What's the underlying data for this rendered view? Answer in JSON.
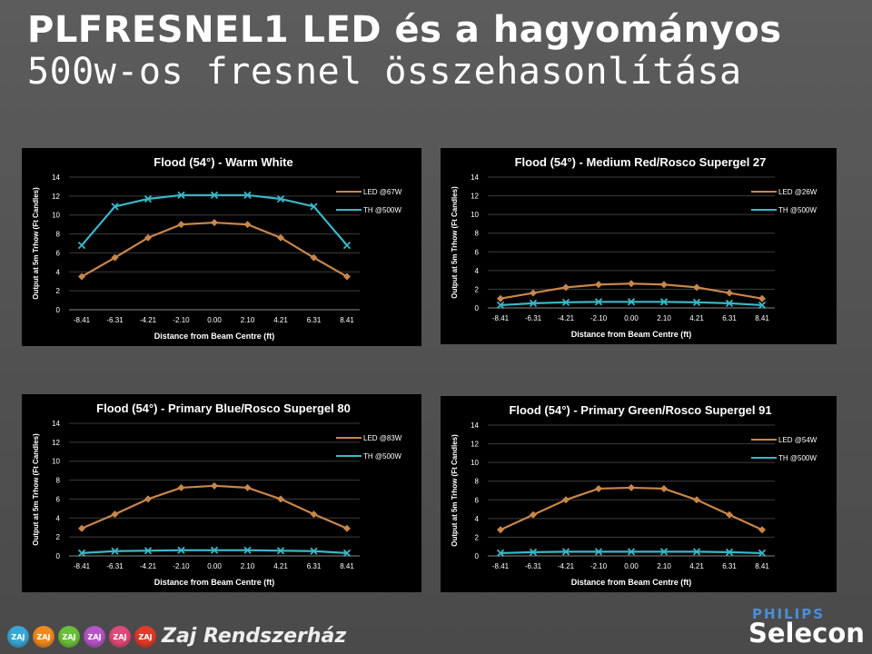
{
  "slide": {
    "title_line1": "PLFRESNEL1 LED és a hagyományos",
    "title_line2": "500w-os fresnel összehasonlítása"
  },
  "footer": {
    "badges": [
      {
        "text": "ZAJ",
        "color": "#3aa7d6"
      },
      {
        "text": "ZAJ",
        "color": "#f08a1c"
      },
      {
        "text": "ZAJ",
        "color": "#6cbf3a"
      },
      {
        "text": "ZAJ",
        "color": "#b455c8"
      },
      {
        "text": "ZAJ",
        "color": "#e04a7a"
      },
      {
        "text": "ZAJ",
        "color": "#e23a2a"
      }
    ],
    "company": "Zaj Rendszerház",
    "brand_top": "PHILIPS",
    "brand": "Selecon"
  },
  "chart_data": [
    {
      "type": "line",
      "title": "Flood (54°) - Warm White",
      "xlabel": "Distance from Beam Centre (ft)",
      "ylabel": "Output at 5m Trhow (Ft Candles)",
      "categories": [
        "-8.41",
        "-6.31",
        "-4.21",
        "-2.10",
        "0.00",
        "2.10",
        "4.21",
        "6.31",
        "8.41"
      ],
      "ylim": [
        0,
        14
      ],
      "yticks": [
        0,
        2,
        4,
        6,
        8,
        10,
        12,
        14
      ],
      "grid": true,
      "legend": "right",
      "series": [
        {
          "name": "LED @67W",
          "color": "#c8864a",
          "marker": "diamond",
          "values": [
            3.5,
            5.5,
            7.6,
            9.0,
            9.2,
            9.0,
            7.6,
            5.5,
            3.5
          ]
        },
        {
          "name": "TH @500W",
          "color": "#3ab7c8",
          "marker": "x",
          "values": [
            6.8,
            10.9,
            11.7,
            12.1,
            12.1,
            12.1,
            11.7,
            10.9,
            6.8
          ]
        }
      ]
    },
    {
      "type": "line",
      "title": "Flood (54°) - Medium Red/Rosco Supergel 27",
      "xlabel": "Distance from Beam Centre (ft)",
      "ylabel": "Output at 5m Trhow (Ft Candles)",
      "categories": [
        "-8.41",
        "-6.31",
        "-4.21",
        "-2.10",
        "0.00",
        "2.10",
        "4.21",
        "6.31",
        "8.41"
      ],
      "ylim": [
        0,
        14
      ],
      "yticks": [
        0,
        2,
        4,
        6,
        8,
        10,
        12,
        14
      ],
      "grid": true,
      "legend": "right",
      "series": [
        {
          "name": "LED @26W",
          "color": "#c8864a",
          "marker": "diamond",
          "values": [
            1.0,
            1.6,
            2.2,
            2.5,
            2.6,
            2.5,
            2.2,
            1.6,
            1.0
          ]
        },
        {
          "name": "TH @500W",
          "color": "#3ab7c8",
          "marker": "x",
          "values": [
            0.3,
            0.5,
            0.6,
            0.65,
            0.65,
            0.65,
            0.6,
            0.5,
            0.3
          ]
        }
      ]
    },
    {
      "type": "line",
      "title": "Flood (54°) - Primary Blue/Rosco Supergel 80",
      "xlabel": "Distance from Beam Centre (ft)",
      "ylabel": "Output at 5m Trhow (Ft Candles)",
      "categories": [
        "-8.41",
        "-6.31",
        "-4.21",
        "-2.10",
        "0.00",
        "2.10",
        "4.21",
        "6.31",
        "8.41"
      ],
      "ylim": [
        0,
        14
      ],
      "yticks": [
        0,
        2,
        4,
        6,
        8,
        10,
        12,
        14
      ],
      "grid": true,
      "legend": "right",
      "series": [
        {
          "name": "LED @83W",
          "color": "#c8864a",
          "marker": "diamond",
          "values": [
            2.9,
            4.4,
            6.0,
            7.2,
            7.4,
            7.2,
            6.0,
            4.4,
            2.9
          ]
        },
        {
          "name": "TH @500W",
          "color": "#3ab7c8",
          "marker": "x",
          "values": [
            0.3,
            0.5,
            0.55,
            0.6,
            0.6,
            0.6,
            0.55,
            0.5,
            0.3
          ]
        }
      ]
    },
    {
      "type": "line",
      "title": "Flood (54°) - Primary Green/Rosco Supergel 91",
      "xlabel": "Distance from Beam Centre (ft)",
      "ylabel": "Output at 5m Trhow (Ft Candles)",
      "categories": [
        "-8.41",
        "-6.31",
        "-4.21",
        "-2.10",
        "0.00",
        "2.10",
        "4.21",
        "6.31",
        "8.41"
      ],
      "ylim": [
        0,
        14
      ],
      "yticks": [
        0,
        2,
        4,
        6,
        8,
        10,
        12,
        14
      ],
      "grid": true,
      "legend": "right",
      "series": [
        {
          "name": "LED @54W",
          "color": "#c8864a",
          "marker": "diamond",
          "values": [
            2.8,
            4.4,
            6.0,
            7.2,
            7.3,
            7.2,
            6.0,
            4.4,
            2.8
          ]
        },
        {
          "name": "TH @500W",
          "color": "#3ab7c8",
          "marker": "x",
          "values": [
            0.3,
            0.4,
            0.45,
            0.45,
            0.45,
            0.45,
            0.45,
            0.4,
            0.3
          ]
        }
      ]
    }
  ]
}
